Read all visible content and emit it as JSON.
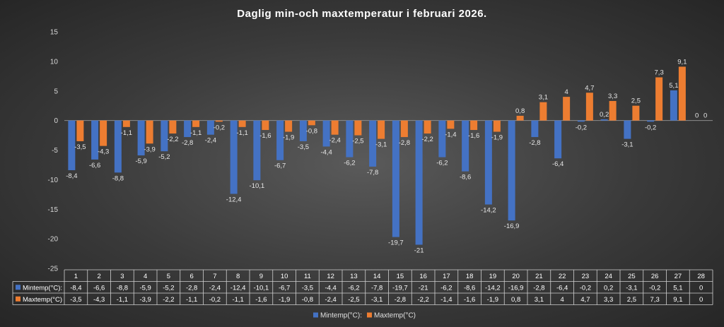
{
  "chart_data": {
    "type": "bar",
    "title": "Daglig min-och maxtemperatur i februari 2026.",
    "categories": [
      "1",
      "2",
      "3",
      "4",
      "5",
      "6",
      "7",
      "8",
      "9",
      "10",
      "11",
      "12",
      "13",
      "14",
      "15",
      "16",
      "17",
      "18",
      "19",
      "20",
      "21",
      "22",
      "23",
      "24",
      "25",
      "26",
      "27",
      "28"
    ],
    "series": [
      {
        "name": "Mintemp(°C):",
        "color": "#4472c4",
        "values": [
          -8.4,
          -6.6,
          -8.8,
          -5.9,
          -5.2,
          -2.8,
          -2.4,
          -12.4,
          -10.1,
          -6.7,
          -3.5,
          -4.4,
          -6.2,
          -7.8,
          -19.7,
          -21,
          -6.2,
          -8.6,
          -14.2,
          -16.9,
          -2.8,
          -6.4,
          -0.2,
          0.2,
          -3.1,
          -0.2,
          5.1,
          0
        ],
        "labels": [
          "-8,4",
          "-6,6",
          "-8,8",
          "-5,9",
          "-5,2",
          "-2,8",
          "-2,4",
          "-12,4",
          "-10,1",
          "-6,7",
          "-3,5",
          "-4,4",
          "-6,2",
          "-7,8",
          "-19,7",
          "-21",
          "-6,2",
          "-8,6",
          "-14,2",
          "-16,9",
          "-2,8",
          "-6,4",
          "-0,2",
          "0,2",
          "-3,1",
          "-0,2",
          "5,1",
          "0"
        ]
      },
      {
        "name": "Maxtemp(°C)",
        "color": "#ed7d31",
        "values": [
          -3.5,
          -4.3,
          -1.1,
          -3.9,
          -2.2,
          -1.1,
          -0.2,
          -1.1,
          -1.6,
          -1.9,
          -0.8,
          -2.4,
          -2.5,
          -3.1,
          -2.8,
          -2.2,
          -1.4,
          -1.6,
          -1.9,
          0.8,
          3.1,
          4,
          4.7,
          3.3,
          2.5,
          7.3,
          9.1,
          0
        ],
        "labels": [
          "-3,5",
          "-4,3",
          "-1,1",
          "-3,9",
          "-2,2",
          "-1,1",
          "-0,2",
          "-1,1",
          "-1,6",
          "-1,9",
          "-0,8",
          "-2,4",
          "-2,5",
          "-3,1",
          "-2,8",
          "-2,2",
          "-1,4",
          "-1,6",
          "-1,9",
          "0,8",
          "3,1",
          "4",
          "4,7",
          "3,3",
          "2,5",
          "7,3",
          "9,1",
          "0"
        ]
      }
    ],
    "ylim": [
      -25,
      15
    ],
    "yticks": [
      15,
      10,
      5,
      0,
      -5,
      -10,
      -15,
      -20,
      -25
    ],
    "grid": false,
    "legend": "bottom",
    "data_table": true
  }
}
